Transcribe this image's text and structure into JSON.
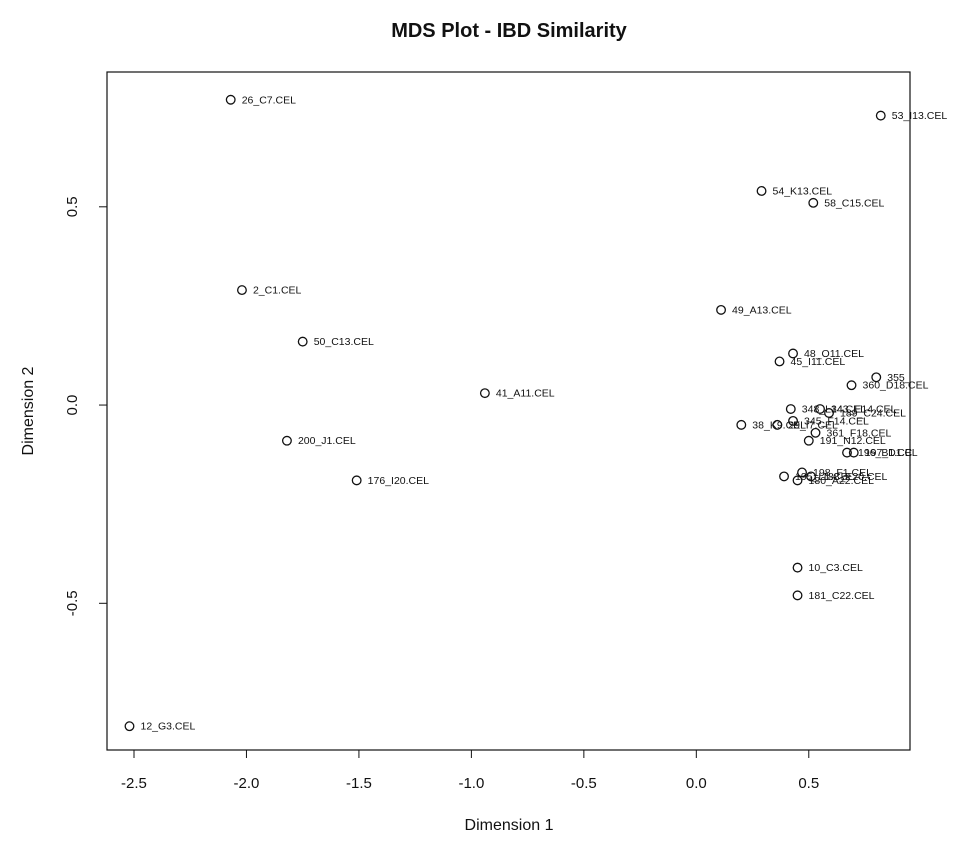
{
  "chart_data": {
    "type": "scatter",
    "title": "MDS Plot - IBD Similarity",
    "xlabel": "Dimension 1",
    "ylabel": "Dimension 2",
    "xlim": [
      -2.62,
      0.95
    ],
    "ylim": [
      -0.87,
      0.84
    ],
    "xticks": [
      -2.5,
      -2.0,
      -1.5,
      -1.0,
      -0.5,
      0.0,
      0.5
    ],
    "xtick_labels": [
      "-2.5",
      "-2.0",
      "-1.5",
      "-1.0",
      "-0.5",
      "0.0",
      "0.5"
    ],
    "yticks": [
      -0.5,
      0.0,
      0.5
    ],
    "ytick_labels": [
      "-0.5",
      "0.0",
      "0.5"
    ],
    "grid": false,
    "legend": "none",
    "points": [
      {
        "label": "26_C7.CEL",
        "x": -2.07,
        "y": 0.77
      },
      {
        "label": "53_I13.CEL",
        "x": 0.82,
        "y": 0.73
      },
      {
        "label": "58_C15.CEL",
        "x": 0.52,
        "y": 0.51
      },
      {
        "label": "54_K13.CEL",
        "x": 0.29,
        "y": 0.54
      },
      {
        "label": "2_C1.CEL",
        "x": -2.02,
        "y": 0.29
      },
      {
        "label": "49_A13.CEL",
        "x": 0.11,
        "y": 0.24
      },
      {
        "label": "50_C13.CEL",
        "x": -1.75,
        "y": 0.16
      },
      {
        "label": "45_I11.CEL",
        "x": 0.37,
        "y": 0.11
      },
      {
        "label": "48_O11.CEL",
        "x": 0.43,
        "y": 0.13
      },
      {
        "label": "360_D18.CEL",
        "x": 0.69,
        "y": 0.05
      },
      {
        "label": "355_",
        "x": 0.8,
        "y": 0.07
      },
      {
        "label": "41_A11.CEL",
        "x": -0.94,
        "y": 0.03
      },
      {
        "label": "348_L14.CEL",
        "x": 0.42,
        "y": -0.01
      },
      {
        "label": "343_E14.CEL",
        "x": 0.55,
        "y": -0.01
      },
      {
        "label": "189_C24.CEL",
        "x": 0.59,
        "y": -0.02
      },
      {
        "label": "38_K9.CEL",
        "x": 0.2,
        "y": -0.05
      },
      {
        "label": "29_I7.CEL",
        "x": 0.36,
        "y": -0.05
      },
      {
        "label": "345_F14.CEL",
        "x": 0.43,
        "y": -0.04
      },
      {
        "label": "200_J1.CEL",
        "x": -1.82,
        "y": -0.09
      },
      {
        "label": "361_F18.CEL",
        "x": 0.53,
        "y": -0.07
      },
      {
        "label": "191_N12.CEL",
        "x": 0.5,
        "y": -0.09
      },
      {
        "label": "197_D1.C",
        "x": 0.7,
        "y": -0.12
      },
      {
        "label": "196_B1.CEL",
        "x": 0.67,
        "y": -0.12
      },
      {
        "label": "176_I20.CEL",
        "x": -1.51,
        "y": -0.19
      },
      {
        "label": "198_F1.CEL",
        "x": 0.47,
        "y": -0.17
      },
      {
        "label": "195_L1.CEL",
        "x": 0.39,
        "y": -0.18
      },
      {
        "label": "188_E20.CEL",
        "x": 0.51,
        "y": -0.18
      },
      {
        "label": "180_A22.CEL",
        "x": 0.45,
        "y": -0.19
      },
      {
        "label": "10_C3.CEL",
        "x": 0.45,
        "y": -0.41
      },
      {
        "label": "181_C22.CEL",
        "x": 0.45,
        "y": -0.48
      },
      {
        "label": "12_G3.CEL",
        "x": -2.52,
        "y": -0.81
      }
    ]
  }
}
